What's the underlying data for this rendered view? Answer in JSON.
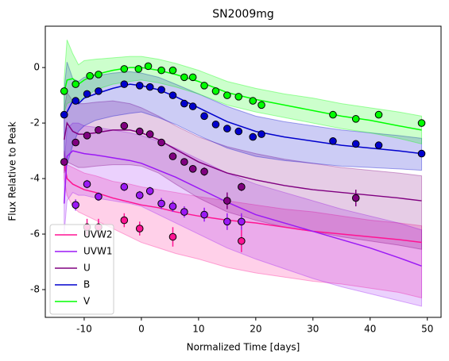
{
  "chart_data": {
    "type": "line_band_errorbar",
    "title": "SN2009mg",
    "xlabel": "Normalized Time [days]",
    "ylabel": "Flux Relative to Peak",
    "xlim": [
      -16.8,
      52.4
    ],
    "ylim": [
      -9.0,
      1.49
    ],
    "xticks": [
      -10,
      0,
      10,
      20,
      30,
      40,
      50
    ],
    "yticks": [
      -8,
      -6,
      -4,
      -2,
      0
    ],
    "grid": false,
    "legend": "lower left",
    "x": [
      -13.5,
      -13,
      -12,
      -11,
      -10,
      -8,
      -5,
      -2,
      0,
      3,
      6,
      10,
      15,
      20,
      25,
      30,
      35,
      40,
      45,
      49
    ],
    "series": [
      {
        "name": "UVW2",
        "color": "#ff1493",
        "values": [
          -3.4,
          -4.0,
          -4.2,
          -4.3,
          -4.4,
          -4.5,
          -4.7,
          -4.85,
          -4.95,
          -5.05,
          -5.2,
          -5.35,
          -5.5,
          -5.6,
          -5.75,
          -5.9,
          -6.0,
          -6.1,
          -6.2,
          -6.3
        ],
        "upper": [
          -3.0,
          -3.5,
          -3.6,
          -3.7,
          -3.8,
          -3.9,
          -4.1,
          -4.2,
          -4.3,
          -4.4,
          -4.5,
          -4.65,
          -4.8,
          -4.95,
          -5.1,
          -5.2,
          -5.35,
          -5.5,
          -5.6,
          -5.7
        ],
        "lower": [
          -4.0,
          -4.6,
          -5.0,
          -5.2,
          -5.3,
          -5.5,
          -5.8,
          -6.1,
          -6.3,
          -6.5,
          -6.7,
          -6.9,
          -7.2,
          -7.4,
          -7.55,
          -7.7,
          -7.8,
          -7.95,
          -8.1,
          -8.3
        ],
        "points": {
          "x": [
            -9.5,
            -7.5,
            -3,
            -0.3,
            5.5,
            17.5
          ],
          "y": [
            -5.75,
            -5.75,
            -5.5,
            -5.8,
            -6.1,
            -6.25
          ],
          "err": [
            0.3,
            0.3,
            0.25,
            0.25,
            0.35,
            0.4
          ]
        }
      },
      {
        "name": "UVW1",
        "color": "#9b19f5",
        "values": [
          -4.9,
          -3.2,
          -3.0,
          -3.05,
          -3.1,
          -3.15,
          -3.25,
          -3.35,
          -3.45,
          -3.7,
          -3.95,
          -4.35,
          -4.85,
          -5.3,
          -5.6,
          -5.9,
          -6.2,
          -6.5,
          -6.85,
          -7.15
        ],
        "upper": [
          -3.5,
          -2.2,
          -2.0,
          -2.0,
          -2.1,
          -2.15,
          -2.25,
          -2.35,
          -2.45,
          -2.65,
          -2.9,
          -3.3,
          -3.8,
          -4.2,
          -4.5,
          -4.8,
          -5.1,
          -5.35,
          -5.6,
          -5.85
        ],
        "lower": [
          -6.0,
          -4.8,
          -4.5,
          -4.6,
          -4.6,
          -4.7,
          -4.8,
          -4.9,
          -5.0,
          -5.3,
          -5.6,
          -6.0,
          -6.5,
          -6.9,
          -7.25,
          -7.6,
          -7.9,
          -8.15,
          -8.4,
          -8.6
        ],
        "points": {
          "x": [
            -11.5,
            -9.5,
            -7.5,
            -3,
            -0.3,
            1.5,
            3.5,
            5.5,
            7.5,
            11,
            15,
            17.5
          ],
          "y": [
            -4.95,
            -4.2,
            -4.65,
            -4.3,
            -4.6,
            -4.45,
            -4.9,
            -5.0,
            -5.2,
            -5.3,
            -5.55,
            -5.55
          ],
          "err": [
            0.2,
            0.15,
            0.15,
            0.15,
            0.15,
            0.15,
            0.2,
            0.2,
            0.2,
            0.25,
            0.3,
            0.3
          ]
        }
      },
      {
        "name": "U",
        "color": "#800080",
        "values": [
          -2.6,
          -2.0,
          -2.3,
          -2.4,
          -2.4,
          -2.35,
          -2.25,
          -2.25,
          -2.35,
          -2.6,
          -2.95,
          -3.4,
          -3.8,
          -4.05,
          -4.25,
          -4.4,
          -4.5,
          -4.6,
          -4.7,
          -4.8
        ],
        "upper": [
          -1.5,
          -0.9,
          -1.2,
          -1.3,
          -1.3,
          -1.25,
          -1.2,
          -1.3,
          -1.45,
          -1.75,
          -2.1,
          -2.5,
          -2.85,
          -3.1,
          -3.3,
          -3.45,
          -3.6,
          -3.7,
          -3.8,
          -3.9
        ],
        "lower": [
          -3.8,
          -3.4,
          -3.5,
          -3.6,
          -3.6,
          -3.55,
          -3.5,
          -3.5,
          -3.55,
          -3.8,
          -4.2,
          -4.7,
          -5.2,
          -5.5,
          -5.75,
          -5.9,
          -6.1,
          -6.25,
          -6.4,
          -6.55
        ],
        "points": {
          "x": [
            -13.5,
            -11.5,
            -9.5,
            -7.5,
            -3,
            -0.3,
            1.5,
            3.5,
            5.5,
            7.5,
            9,
            11,
            15,
            17.5,
            37.5
          ],
          "y": [
            -3.4,
            -2.7,
            -2.45,
            -2.25,
            -2.1,
            -2.3,
            -2.4,
            -2.7,
            -3.2,
            -3.4,
            -3.65,
            -3.75,
            -4.8,
            -4.3,
            -4.7
          ],
          "err": [
            0.05,
            0.05,
            0.05,
            0.05,
            0.05,
            0.05,
            0.05,
            0.05,
            0.05,
            0.1,
            0.1,
            0.15,
            0.3,
            0.15,
            0.3
          ]
        }
      },
      {
        "name": "B",
        "color": "#0000cd",
        "values": [
          -1.8,
          -1.6,
          -1.2,
          -1.3,
          -1.1,
          -0.95,
          -0.75,
          -0.6,
          -0.65,
          -0.8,
          -1.05,
          -1.45,
          -1.95,
          -2.3,
          -2.5,
          -2.65,
          -2.8,
          -2.9,
          -3.0,
          -3.1
        ],
        "upper": [
          -0.8,
          0.2,
          -0.4,
          -0.5,
          -0.35,
          -0.3,
          -0.2,
          -0.15,
          -0.2,
          -0.35,
          -0.6,
          -0.95,
          -1.4,
          -1.75,
          -1.95,
          -2.1,
          -2.25,
          -2.35,
          -2.45,
          -2.55
        ],
        "lower": [
          -3.2,
          -3.5,
          -2.8,
          -2.3,
          -2.1,
          -1.9,
          -1.75,
          -1.65,
          -1.6,
          -1.8,
          -2.05,
          -2.45,
          -2.9,
          -3.2,
          -3.35,
          -3.45,
          -3.55,
          -3.6,
          -3.65,
          -3.7
        ],
        "points": {
          "x": [
            -13.5,
            -11.5,
            -9.5,
            -7.5,
            -3,
            -0.3,
            1.5,
            3.5,
            5.5,
            7.5,
            9,
            11,
            13,
            15,
            17,
            19.5,
            21,
            33.5,
            37.5,
            41.5,
            49
          ],
          "y": [
            -1.7,
            -1.2,
            -0.95,
            -0.85,
            -0.6,
            -0.65,
            -0.7,
            -0.8,
            -1.0,
            -1.3,
            -1.4,
            -1.75,
            -2.05,
            -2.2,
            -2.3,
            -2.5,
            -2.4,
            -2.65,
            -2.75,
            -2.8,
            -3.1
          ],
          "err": [
            0.05,
            0.05,
            0.05,
            0.05,
            0.05,
            0.05,
            0.05,
            0.05,
            0.05,
            0.05,
            0.05,
            0.05,
            0.05,
            0.05,
            0.05,
            0.05,
            0.05,
            0.05,
            0.05,
            0.05,
            0.05
          ]
        }
      },
      {
        "name": "V",
        "color": "#00ff00",
        "values": [
          -0.9,
          -0.45,
          -0.4,
          -0.6,
          -0.45,
          -0.25,
          -0.1,
          0,
          0,
          -0.1,
          -0.25,
          -0.5,
          -0.9,
          -1.15,
          -1.35,
          -1.55,
          -1.75,
          -1.9,
          -2.1,
          -2.25
        ],
        "upper": [
          -0.4,
          1.0,
          0.5,
          0.1,
          0.25,
          0.3,
          0.35,
          0.4,
          0.4,
          0.3,
          0.15,
          -0.1,
          -0.5,
          -0.75,
          -0.95,
          -1.1,
          -1.3,
          -1.45,
          -1.6,
          -1.75
        ],
        "lower": [
          -1.6,
          -1.3,
          -1.2,
          -1.2,
          -1.1,
          -0.8,
          -0.6,
          -0.5,
          -0.45,
          -0.55,
          -0.7,
          -0.95,
          -1.35,
          -1.6,
          -1.8,
          -2.0,
          -2.2,
          -2.35,
          -2.55,
          -2.75
        ],
        "points": {
          "x": [
            -13.5,
            -11.5,
            -9,
            -7.5,
            -3,
            -0.5,
            1.2,
            3.5,
            5.5,
            7.5,
            9,
            11,
            13,
            15,
            17,
            19.5,
            21,
            33.5,
            37.5,
            41.5,
            49
          ],
          "y": [
            -0.85,
            -0.6,
            -0.3,
            -0.25,
            -0.05,
            -0.05,
            0.05,
            -0.1,
            -0.1,
            -0.35,
            -0.35,
            -0.65,
            -0.85,
            -1.0,
            -1.05,
            -1.2,
            -1.35,
            -1.7,
            -1.85,
            -1.7,
            -2.0
          ],
          "err": [
            0.05,
            0.05,
            0.05,
            0.05,
            0.05,
            0.05,
            0.05,
            0.05,
            0.05,
            0.05,
            0.05,
            0.05,
            0.05,
            0.05,
            0.05,
            0.05,
            0.05,
            0.05,
            0.05,
            0.05,
            0.05
          ]
        }
      }
    ]
  }
}
